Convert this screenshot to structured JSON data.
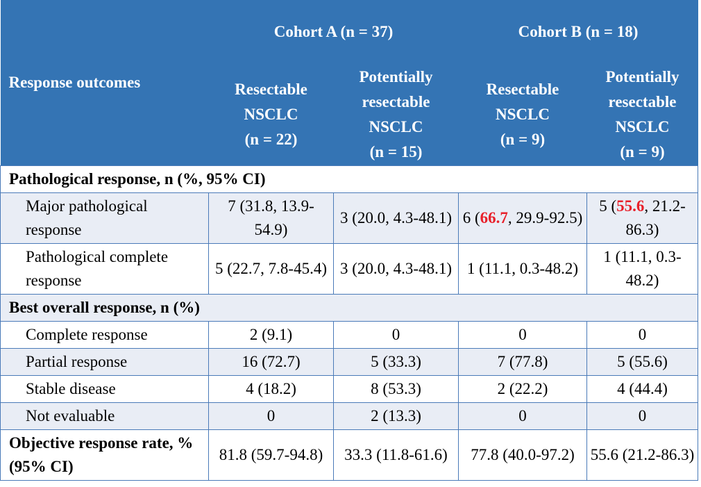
{
  "header": {
    "row_label": "Response outcomes",
    "cohorts": [
      {
        "label": "Cohort A (n = 37)",
        "columns": [
          [
            "Resectable",
            "NSCLC",
            "(n = 22)"
          ],
          [
            "Potentially",
            "resectable",
            "NSCLC",
            "(n = 15)"
          ]
        ]
      },
      {
        "label": "Cohort B (n = 18)",
        "columns": [
          [
            "Resectable",
            "NSCLC",
            "(n = 9)"
          ],
          [
            "Potentially",
            "resectable",
            "NSCLC",
            "(n = 9)"
          ]
        ]
      }
    ]
  },
  "sections": [
    {
      "title": "Pathological response, n (%, 95% CI)",
      "rows": [
        {
          "label": "Major pathological response",
          "cells": [
            "7 (31.8, 13.9-54.9)",
            "3 (20.0, 4.3-48.1)",
            {
              "before": "6 (",
              "highlight": "66.7",
              "after": ", 29.9-92.5)"
            },
            {
              "before": "5 (",
              "highlight": "55.6",
              "after": ", 21.2-86.3)"
            }
          ]
        },
        {
          "label": "Pathological complete response",
          "cells": [
            "5 (22.7, 7.8-45.4)",
            "3 (20.0, 4.3-48.1)",
            "1 (11.1, 0.3-48.2)",
            "1 (11.1, 0.3-48.2)"
          ]
        }
      ]
    },
    {
      "title": "Best overall response, n (%)",
      "rows": [
        {
          "label": "Complete response",
          "cells": [
            "2 (9.1)",
            "0",
            "0",
            "0"
          ]
        },
        {
          "label": "Partial response",
          "cells": [
            "16 (72.7)",
            "5 (33.3)",
            "7 (77.8)",
            "5 (55.6)"
          ]
        },
        {
          "label": "Stable disease",
          "cells": [
            "4 (18.2)",
            "8 (53.3)",
            "2 (22.2)",
            "4 (44.4)"
          ]
        },
        {
          "label": "Not evaluable",
          "cells": [
            "0",
            "2 (13.3)",
            "0",
            "0"
          ]
        }
      ]
    }
  ],
  "summary": {
    "label": "Objective response rate, % (95% CI)",
    "cells": [
      "81.8 (59.7-94.8)",
      "33.3 (11.8-61.6)",
      "77.8 (40.0-97.2)",
      "55.6 (21.2-86.3)"
    ]
  }
}
